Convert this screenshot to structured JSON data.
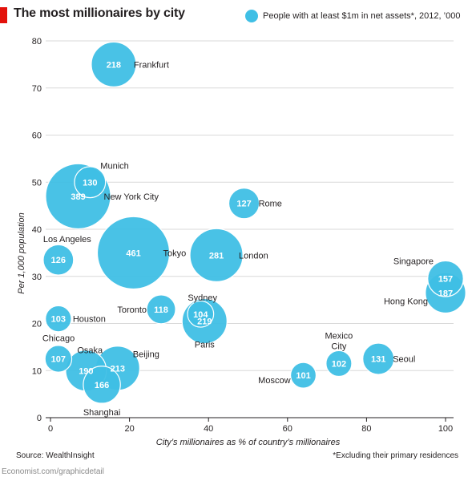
{
  "title": "The most millionaires by city",
  "legend_label": "People with at least $1m in net assets*, 2012, ’000",
  "source": "Source: WealthInsight",
  "footnote": "*Excluding their primary residences",
  "url": "Economist.com/graphicdetail",
  "colors": {
    "bubble": "#3fbfe5",
    "bubble_text": "#ffffff",
    "accent": "#e3120b",
    "grid": "#d9d9d9"
  },
  "chart_data": {
    "type": "scatter",
    "title": "The most millionaires by city",
    "xlabel": "City’s millionaires as % of country’s millionaires",
    "ylabel": "Per 1,000 population",
    "xlim": [
      0,
      100
    ],
    "ylim": [
      0,
      80
    ],
    "xticks": [
      0,
      20,
      40,
      60,
      80,
      100
    ],
    "yticks": [
      0,
      10,
      20,
      30,
      40,
      50,
      60,
      70,
      80
    ],
    "grid": true,
    "size_label": "People with at least $1m in net assets*, 2012, ’000",
    "points": [
      {
        "city": "Frankfurt",
        "x": 16,
        "y": 75,
        "size": 218
      },
      {
        "city": "Munich",
        "x": 10,
        "y": 50,
        "size": 130
      },
      {
        "city": "New York City",
        "x": 7,
        "y": 47,
        "size": 389
      },
      {
        "city": "Rome",
        "x": 49,
        "y": 45.5,
        "size": 127
      },
      {
        "city": "Los Angeles",
        "x": 2,
        "y": 33.5,
        "size": 126
      },
      {
        "city": "Tokyo",
        "x": 21,
        "y": 35,
        "size": 461
      },
      {
        "city": "London",
        "x": 42,
        "y": 34.5,
        "size": 281
      },
      {
        "city": "Singapore",
        "x": 100,
        "y": 29.5,
        "size": 157
      },
      {
        "city": "Hong Kong",
        "x": 100,
        "y": 26.5,
        "size": 187
      },
      {
        "city": "Toronto",
        "x": 28,
        "y": 23,
        "size": 118
      },
      {
        "city": "Sydney",
        "x": 38,
        "y": 22,
        "size": 104
      },
      {
        "city": "Paris",
        "x": 39,
        "y": 20.5,
        "size": 219
      },
      {
        "city": "Houston",
        "x": 2,
        "y": 21,
        "size": 103
      },
      {
        "city": "Chicago",
        "x": 2,
        "y": 12.5,
        "size": 107
      },
      {
        "city": "Osaka",
        "x": 9,
        "y": 10,
        "size": 190
      },
      {
        "city": "Beijing",
        "x": 17,
        "y": 10.5,
        "size": 213
      },
      {
        "city": "Shanghai",
        "x": 13,
        "y": 7,
        "size": 166
      },
      {
        "city": "Mexico City",
        "x": 73,
        "y": 11.5,
        "size": 102
      },
      {
        "city": "Seoul",
        "x": 83,
        "y": 12.5,
        "size": 131
      },
      {
        "city": "Moscow",
        "x": 64,
        "y": 9,
        "size": 101
      }
    ]
  }
}
